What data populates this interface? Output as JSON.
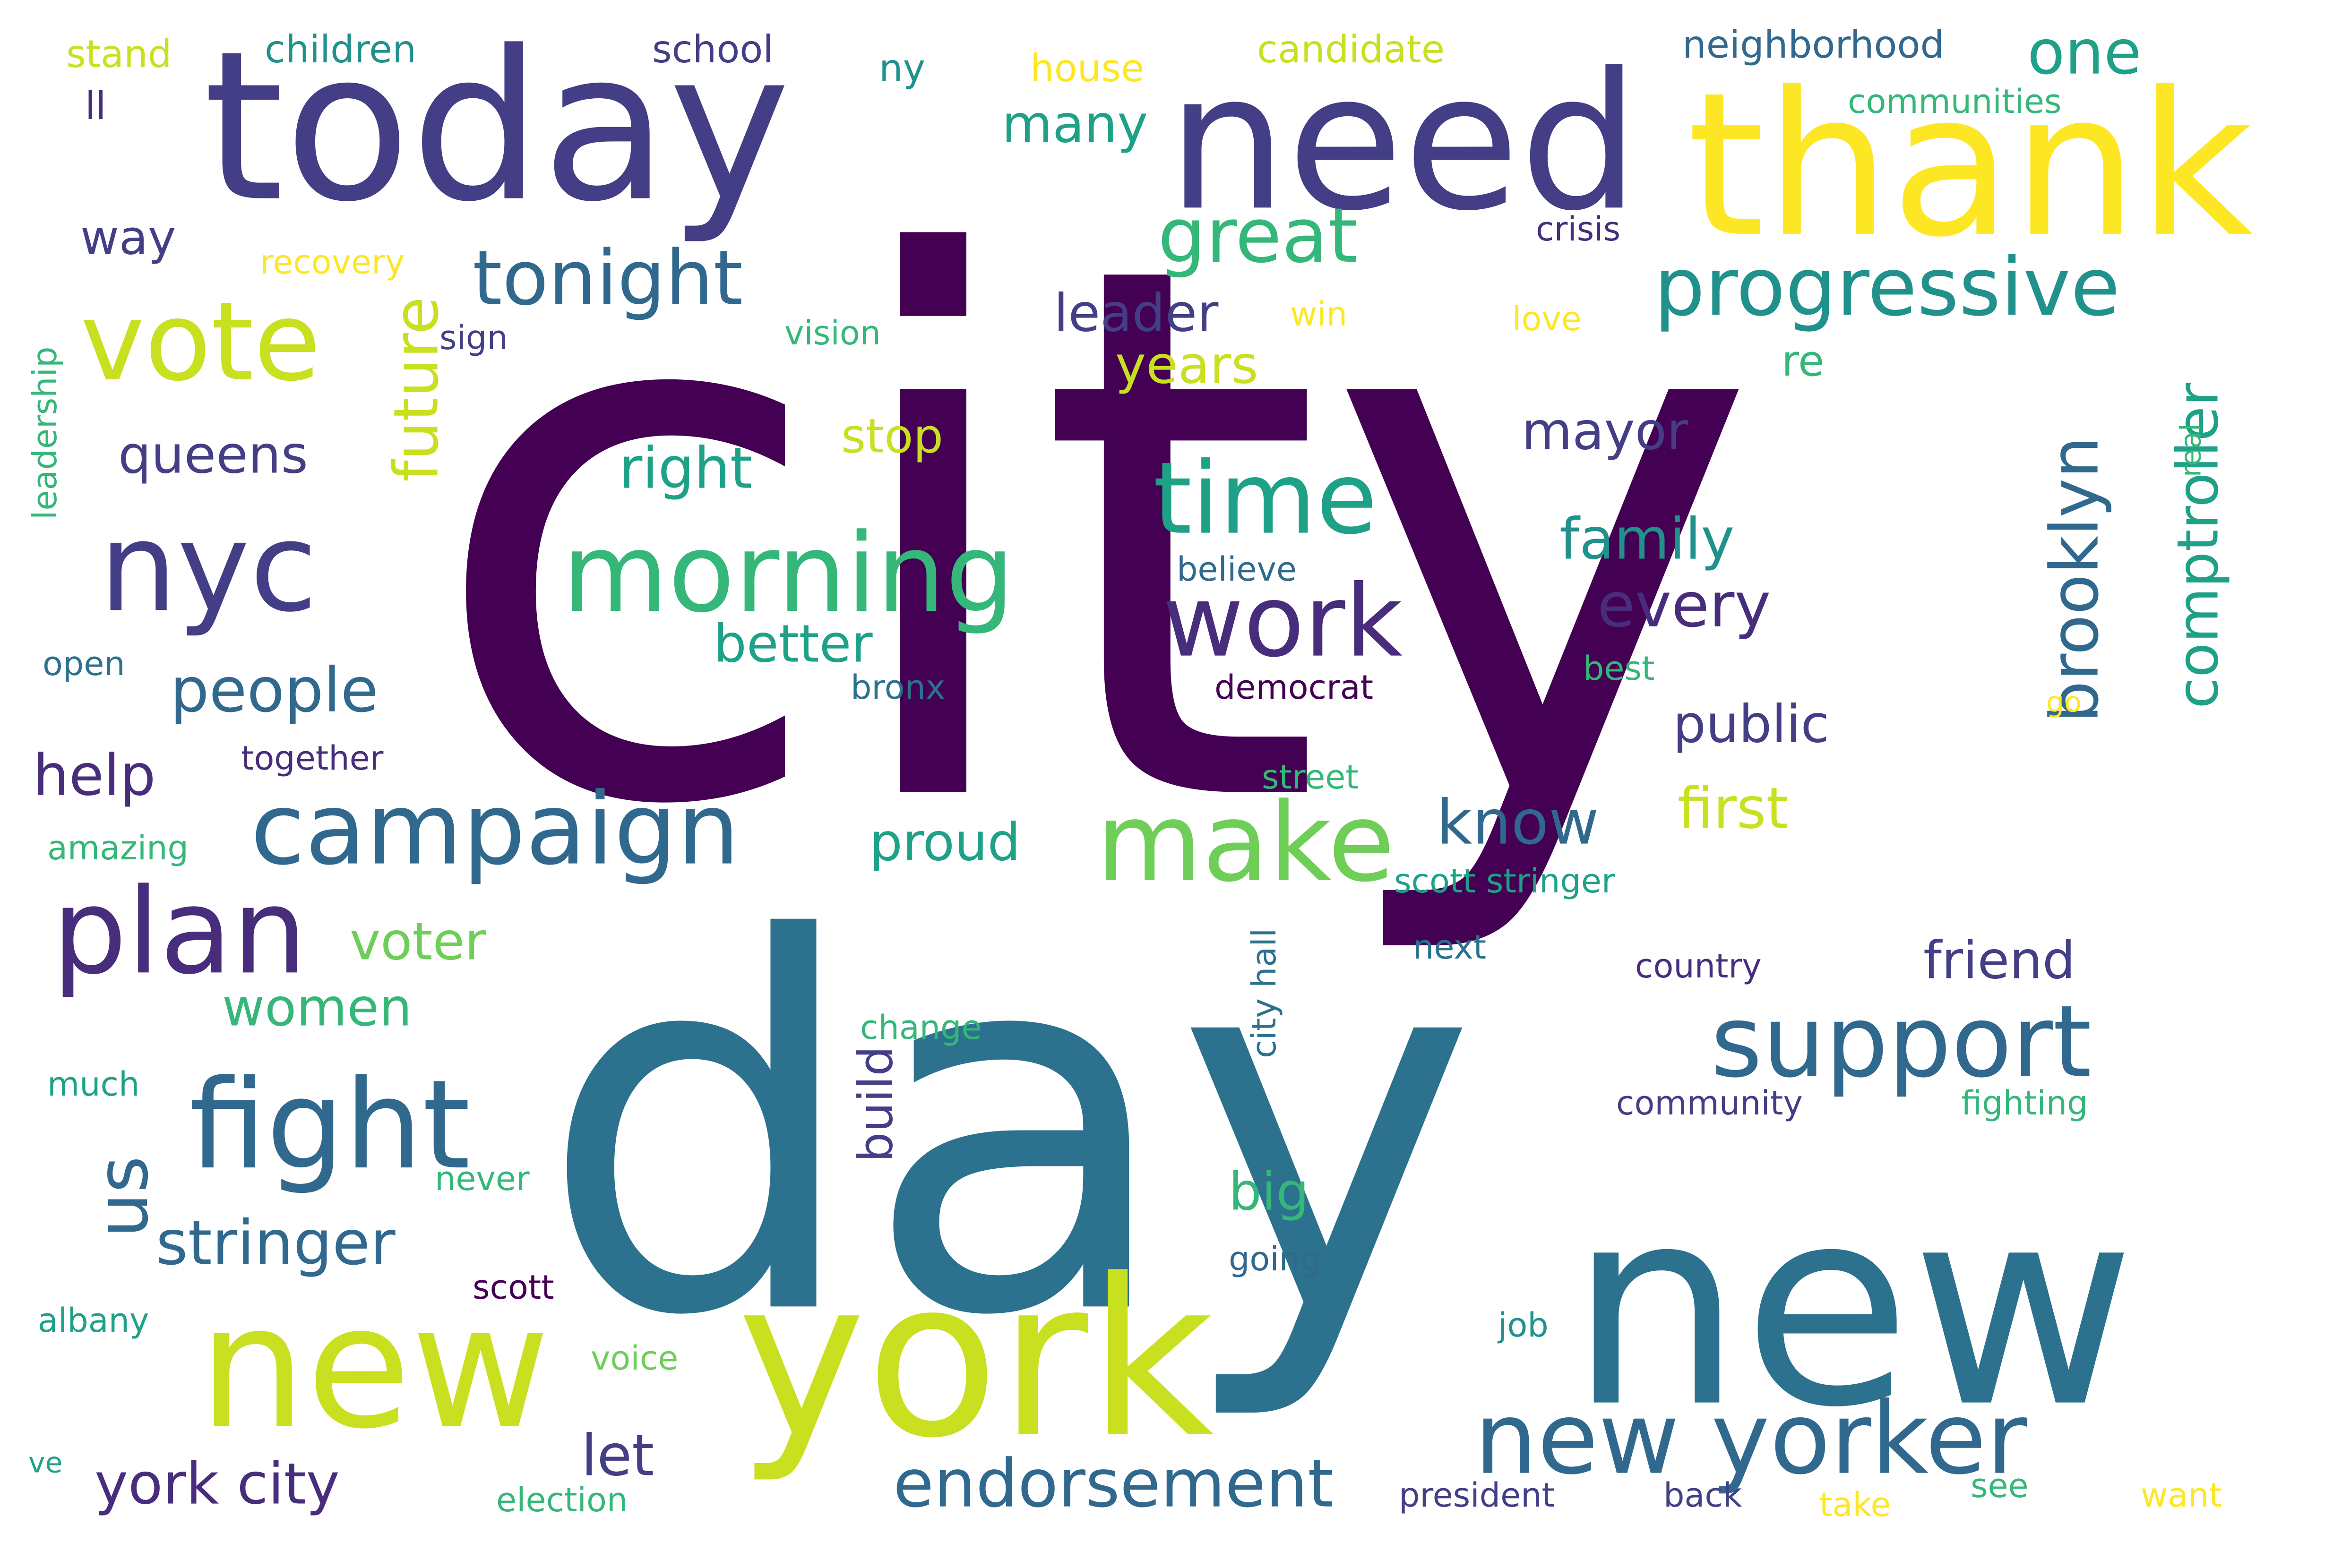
{
  "palette": {
    "dark_purple": "#440154",
    "indigo": "#433e85",
    "purple": "#472d7b",
    "blue": "#31688e",
    "steel": "#2c728e",
    "teal": "#21918c",
    "green_teal": "#1fa187",
    "green": "#35b779",
    "light_green": "#6ece58",
    "lime": "#b5de2b",
    "yellow_green": "#c8e020",
    "yellow": "#fde725"
  },
  "words": [
    {
      "text": "city",
      "color": "dark_purple"
    },
    {
      "text": "day",
      "color": "steel"
    },
    {
      "text": "today",
      "color": "indigo"
    },
    {
      "text": "need",
      "color": "indigo"
    },
    {
      "text": "thank",
      "color": "yellow"
    },
    {
      "text": "new",
      "color": "steel"
    },
    {
      "text": "york",
      "color": "yellow_green"
    },
    {
      "text": "new",
      "color": "yellow_green"
    },
    {
      "text": "nyc",
      "color": "indigo"
    },
    {
      "text": "vote",
      "color": "yellow_green"
    },
    {
      "text": "morning",
      "color": "green"
    },
    {
      "text": "campaign",
      "color": "blue"
    },
    {
      "text": "plan",
      "color": "purple"
    },
    {
      "text": "fight",
      "color": "blue"
    },
    {
      "text": "make",
      "color": "light_green"
    },
    {
      "text": "support",
      "color": "blue"
    },
    {
      "text": "new yorker",
      "color": "blue"
    },
    {
      "text": "time",
      "color": "green_teal"
    },
    {
      "text": "work",
      "color": "purple"
    },
    {
      "text": "progressive",
      "color": "teal"
    },
    {
      "text": "tonight",
      "color": "blue"
    },
    {
      "text": "us",
      "color": "blue"
    },
    {
      "text": "great",
      "color": "green"
    },
    {
      "text": "endorsement",
      "color": "blue"
    },
    {
      "text": "york city",
      "color": "purple"
    },
    {
      "text": "stringer",
      "color": "blue"
    },
    {
      "text": "people",
      "color": "blue"
    },
    {
      "text": "brooklyn",
      "color": "blue"
    },
    {
      "text": "comptroller",
      "color": "green_teal"
    },
    {
      "text": "future",
      "color": "yellow_green"
    },
    {
      "text": "one",
      "color": "green_teal"
    },
    {
      "text": "many",
      "color": "green_teal"
    },
    {
      "text": "know",
      "color": "blue"
    },
    {
      "text": "every",
      "color": "purple"
    },
    {
      "text": "help",
      "color": "purple"
    },
    {
      "text": "queens",
      "color": "indigo"
    },
    {
      "text": "years",
      "color": "yellow_green"
    },
    {
      "text": "leader",
      "color": "indigo"
    },
    {
      "text": "family",
      "color": "teal"
    },
    {
      "text": "mayor",
      "color": "indigo"
    },
    {
      "text": "right",
      "color": "green_teal"
    },
    {
      "text": "better",
      "color": "green_teal"
    },
    {
      "text": "proud",
      "color": "green_teal"
    },
    {
      "text": "first",
      "color": "yellow_green"
    },
    {
      "text": "public",
      "color": "indigo"
    },
    {
      "text": "friend",
      "color": "indigo"
    },
    {
      "text": "women",
      "color": "green"
    },
    {
      "text": "voter",
      "color": "light_green"
    },
    {
      "text": "let",
      "color": "indigo"
    },
    {
      "text": "build",
      "color": "indigo"
    },
    {
      "text": "big",
      "color": "green"
    },
    {
      "text": "way",
      "color": "indigo"
    },
    {
      "text": "re",
      "color": "green"
    },
    {
      "text": "stop",
      "color": "yellow_green"
    },
    {
      "text": "children",
      "color": "teal"
    },
    {
      "text": "stand",
      "color": "yellow_green"
    },
    {
      "text": "school",
      "color": "indigo"
    },
    {
      "text": "ny",
      "color": "teal"
    },
    {
      "text": "house",
      "color": "yellow"
    },
    {
      "text": "candidate",
      "color": "yellow_green"
    },
    {
      "text": "neighborhood",
      "color": "blue"
    },
    {
      "text": "communities",
      "color": "green"
    },
    {
      "text": "ll",
      "color": "purple"
    },
    {
      "text": "crisis",
      "color": "purple"
    },
    {
      "text": "recovery",
      "color": "yellow"
    },
    {
      "text": "win",
      "color": "yellow"
    },
    {
      "text": "love",
      "color": "yellow"
    },
    {
      "text": "sign",
      "color": "indigo"
    },
    {
      "text": "vision",
      "color": "green"
    },
    {
      "text": "leadership",
      "color": "green"
    },
    {
      "text": "real",
      "color": "green"
    },
    {
      "text": "believe",
      "color": "blue"
    },
    {
      "text": "open",
      "color": "steel"
    },
    {
      "text": "bronx",
      "color": "steel"
    },
    {
      "text": "democrat",
      "color": "dark_purple"
    },
    {
      "text": "best",
      "color": "green"
    },
    {
      "text": "go",
      "color": "yellow"
    },
    {
      "text": "together",
      "color": "purple"
    },
    {
      "text": "street",
      "color": "green"
    },
    {
      "text": "amazing",
      "color": "green"
    },
    {
      "text": "scott stringer",
      "color": "green_teal"
    },
    {
      "text": "next",
      "color": "steel"
    },
    {
      "text": "country",
      "color": "purple"
    },
    {
      "text": "city hall",
      "color": "steel"
    },
    {
      "text": "change",
      "color": "green"
    },
    {
      "text": "much",
      "color": "green_teal"
    },
    {
      "text": "community",
      "color": "indigo"
    },
    {
      "text": "fighting",
      "color": "green"
    },
    {
      "text": "never",
      "color": "green"
    },
    {
      "text": "going",
      "color": "blue"
    },
    {
      "text": "scott",
      "color": "dark_purple"
    },
    {
      "text": "albany",
      "color": "green_teal"
    },
    {
      "text": "job",
      "color": "teal"
    },
    {
      "text": "voice",
      "color": "light_green"
    },
    {
      "text": "ve",
      "color": "green_teal"
    },
    {
      "text": "election",
      "color": "green"
    },
    {
      "text": "president",
      "color": "indigo"
    },
    {
      "text": "back",
      "color": "indigo"
    },
    {
      "text": "take",
      "color": "yellow"
    },
    {
      "text": "see",
      "color": "green"
    },
    {
      "text": "want",
      "color": "yellow"
    }
  ]
}
